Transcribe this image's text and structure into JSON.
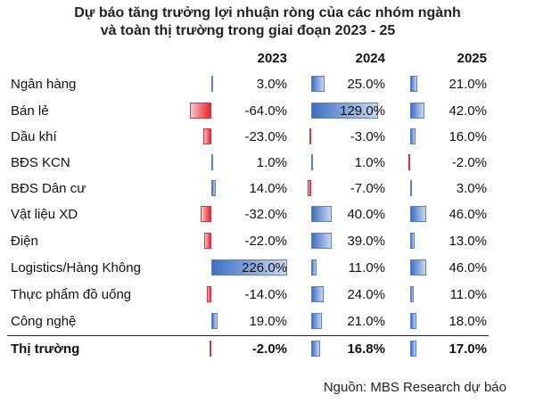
{
  "title_line1": "Dự báo tăng trưởng lợi nhuận ròng của các nhóm ngành",
  "title_line2": "và toàn thị trường trong giai đoạn 2023 - 25",
  "years": [
    "2023",
    "2024",
    "2025"
  ],
  "source": "Nguồn: MBS Research dự báo",
  "colors": {
    "positive": "#3f6fc4",
    "negative": "#e8232f"
  },
  "chart_data": {
    "type": "table",
    "title": "Dự báo tăng trưởng lợi nhuận ròng của các nhóm ngành và toàn thị trường trong giai đoạn 2023 - 25",
    "columns": [
      "2023",
      "2024",
      "2025"
    ],
    "rows": [
      {
        "label": "Ngân hàng",
        "values": [
          3.0,
          25.0,
          21.0
        ],
        "text": [
          "3.0%",
          "25.0%",
          "21.0%"
        ]
      },
      {
        "label": "Bán lẻ",
        "values": [
          -64.0,
          129.0,
          42.0
        ],
        "text": [
          "-64.0%",
          "129.0%",
          "42.0%"
        ]
      },
      {
        "label": "Dầu khí",
        "values": [
          -23.0,
          -3.0,
          16.0
        ],
        "text": [
          "-23.0%",
          "-3.0%",
          "16.0%"
        ]
      },
      {
        "label": "BĐS KCN",
        "values": [
          1.0,
          1.0,
          -2.0
        ],
        "text": [
          "1.0%",
          "1.0%",
          "-2.0%"
        ]
      },
      {
        "label": "BĐS Dân cư",
        "values": [
          14.0,
          -7.0,
          3.0
        ],
        "text": [
          "14.0%",
          "-7.0%",
          "3.0%"
        ]
      },
      {
        "label": "Vật liệu XD",
        "values": [
          -32.0,
          40.0,
          46.0
        ],
        "text": [
          "-32.0%",
          "40.0%",
          "46.0%"
        ]
      },
      {
        "label": "Điện",
        "values": [
          -22.0,
          39.0,
          13.0
        ],
        "text": [
          "-22.0%",
          "39.0%",
          "13.0%"
        ]
      },
      {
        "label": "Logistics/Hàng Không",
        "values": [
          226.0,
          11.0,
          46.0
        ],
        "text": [
          "226.0%",
          "11.0%",
          "46.0%"
        ]
      },
      {
        "label": "Thực phẩm đồ uống",
        "values": [
          -14.0,
          24.0,
          11.0
        ],
        "text": [
          "-14.0%",
          "24.0%",
          "11.0%"
        ]
      },
      {
        "label": "Công nghệ",
        "values": [
          19.0,
          21.0,
          18.0
        ],
        "text": [
          "19.0%",
          "21.0%",
          "18.0%"
        ]
      },
      {
        "label": "Thị trường",
        "values": [
          -2.0,
          16.8,
          17.0
        ],
        "text": [
          "-2.0%",
          "16.8%",
          "17.0%"
        ],
        "bold": true
      }
    ]
  }
}
